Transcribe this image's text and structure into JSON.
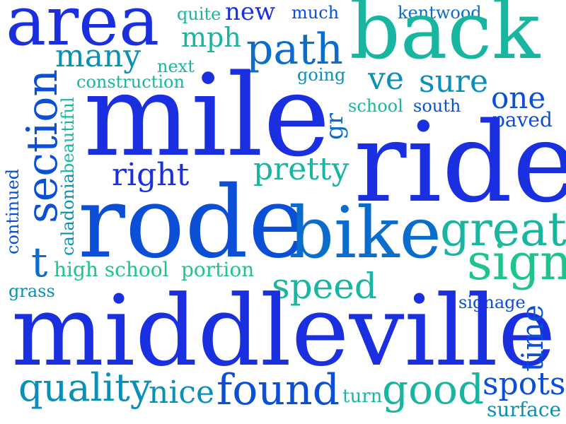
{
  "words": {
    "area": "area",
    "quite": "quite",
    "new": "new",
    "much": "much",
    "kentwood": "kentwood",
    "back": "back",
    "mph": "mph",
    "many": "many",
    "path": "path",
    "next": "next",
    "going": "going",
    "construction": "construction",
    "ve": "ve",
    "sure": "sure",
    "mile": "mile",
    "school": "school",
    "south": "south",
    "one": "one",
    "paved": "paved",
    "gr": "gr",
    "beautiful": "beautiful",
    "section": "section",
    "continued": "continued",
    "caladonia": "caladonia",
    "right": "right",
    "pretty": "pretty",
    "ride": "ride",
    "rode": "rode",
    "bike": "bike",
    "great": "great",
    "t": "t",
    "high_school": "high school",
    "portion": "portion",
    "sign": "sign",
    "grass": "grass",
    "speed": "speed",
    "signage": "signage",
    "middleville": "middleville",
    "time": "time",
    "quality": "quality",
    "nice": "nice",
    "found": "found",
    "turn": "turn",
    "good": "good",
    "spots": "spots",
    "surface": "surface"
  },
  "colors": {
    "blue": "#1a2fe0",
    "royal": "#0a4fd6",
    "mid_blue": "#0b6dcb",
    "teal_blue": "#0a8fb8",
    "teal": "#18b6a0",
    "sea_green": "#1fc38f"
  }
}
